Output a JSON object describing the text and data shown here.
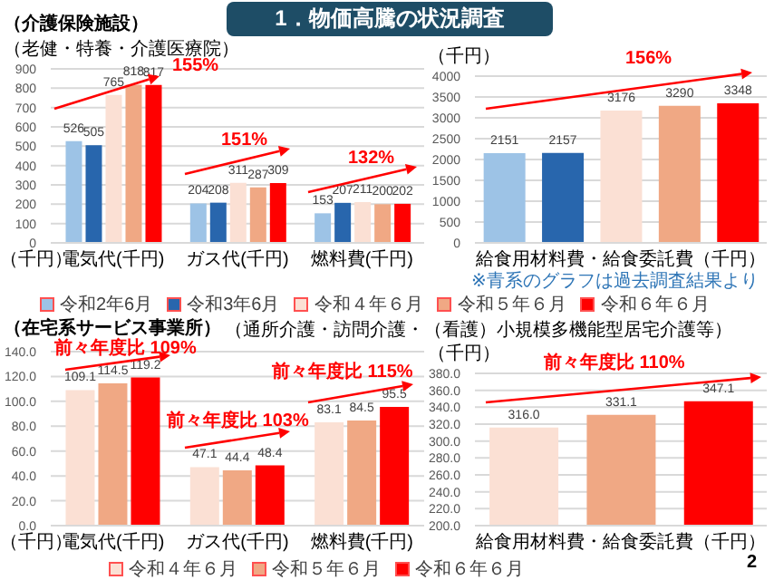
{
  "chart_data": [
    {
      "type": "bar",
      "title": "1．物価高騰の状況調査",
      "subtitle": "（介護保険施設）",
      "ylabel": "（千円）",
      "categories": [
        "電気代(千円)",
        "ガス代(千円)",
        "燃料費(千円)"
      ],
      "series": [
        {
          "name": "令和2年6月",
          "color": "#9dc3e6",
          "values": [
            526,
            204,
            153
          ]
        },
        {
          "name": "令和3年6月",
          "color": "#2866ad",
          "values": [
            505,
            208,
            207
          ]
        },
        {
          "name": "令和４年６月",
          "color": "#fbe0d4",
          "values": [
            765,
            311,
            211
          ]
        },
        {
          "name": "令和５年６月",
          "color": "#f0a884",
          "values": [
            818,
            287,
            200
          ]
        },
        {
          "name": "令和６年６月",
          "color": "#ff0000",
          "values": [
            817,
            309,
            202
          ]
        }
      ],
      "ylim": [
        0,
        900
      ],
      "yticks": [
        0,
        100,
        200,
        300,
        400,
        500,
        600,
        700,
        800,
        900
      ],
      "grid": "y",
      "legend": "bottom",
      "data_labels": true,
      "annotations": [
        "（老健・特養・介護医療院）",
        "155%",
        "151%",
        "132%"
      ]
    },
    {
      "type": "bar",
      "ylabel": "（千円）",
      "categories": [
        null,
        null,
        "給食用材料費・給食委託費（千円）",
        null,
        null
      ],
      "values": [
        2151,
        2157,
        3176,
        3290,
        3348
      ],
      "colors": [
        "#9dc3e6",
        "#2866ad",
        "#fbe0d4",
        "#f0a884",
        "#ff0000"
      ],
      "ylim": [
        0,
        4000
      ],
      "yticks": [
        0,
        500,
        1000,
        1500,
        2000,
        2500,
        3000,
        3500,
        4000
      ],
      "grid": "y",
      "data_labels": true,
      "annotations": [
        "156%",
        "※青系のグラフは過去調査結果より"
      ]
    },
    {
      "type": "bar",
      "subtitle": "（在宅系サービス事業所）",
      "ylabel": "（千円）",
      "categories": [
        "電気代(千円)",
        "ガス代(千円)",
        "燃料費(千円)"
      ],
      "series": [
        {
          "name": "令和４年６月",
          "color": "#fbe0d4",
          "values": [
            109.1,
            47.1,
            83.1
          ]
        },
        {
          "name": "令和５年６月",
          "color": "#f0a884",
          "values": [
            114.5,
            44.4,
            84.5
          ]
        },
        {
          "name": "令和６年６月",
          "color": "#ff0000",
          "values": [
            119.2,
            48.4,
            95.5
          ]
        }
      ],
      "ylim": [
        0,
        140
      ],
      "yticks": [
        {
          "value": 0,
          "label": "0.0"
        },
        {
          "value": 20,
          "label": "20.0"
        },
        {
          "value": 40,
          "label": "40.0"
        },
        {
          "value": 60,
          "label": "60.0"
        },
        {
          "value": 80,
          "label": "80.0"
        },
        {
          "value": 100,
          "label": "100.0"
        },
        {
          "value": 120,
          "label": "120.0"
        },
        {
          "value": 140,
          "label": "140.0"
        }
      ],
      "grid": "y",
      "legend": "bottom",
      "data_labels": true,
      "annotations": [
        "（通所介護・訪問介護・（看護）小規模多機能型居宅介護等）",
        "前々年度比 109%",
        "前々年度比 103%",
        "前々年度比 115%"
      ]
    },
    {
      "type": "bar",
      "ylabel": "（千円）",
      "categories": [
        null,
        "給食用材料費・給食委託費（千円）",
        null
      ],
      "values": [
        316.0,
        331.1,
        347.1
      ],
      "value_labels": [
        "316.0",
        "331.1",
        "347.1"
      ],
      "colors": [
        "#fbe0d4",
        "#f0a884",
        "#ff0000"
      ],
      "ylim": [
        200,
        380
      ],
      "yticks": [
        {
          "value": 200,
          "label": "200.0"
        },
        {
          "value": 220,
          "label": "220.0"
        },
        {
          "value": 240,
          "label": "240.0"
        },
        {
          "value": 260,
          "label": "260.0"
        },
        {
          "value": 280,
          "label": "280.0"
        },
        {
          "value": 300,
          "label": "300.0"
        },
        {
          "value": 320,
          "label": "320.0"
        },
        {
          "value": 340,
          "label": "340.0"
        },
        {
          "value": 360,
          "label": "360.0"
        },
        {
          "value": 380,
          "label": "380.0"
        }
      ],
      "grid": "y",
      "annotations": [
        "前々年度比 110%",
        "2"
      ]
    }
  ]
}
